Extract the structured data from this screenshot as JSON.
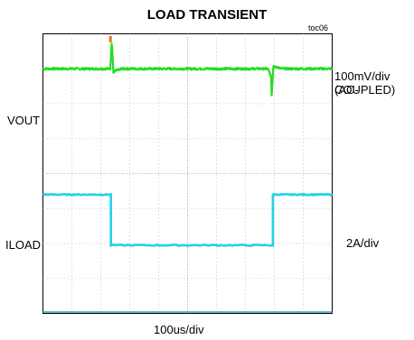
{
  "chart_data": {
    "type": "line",
    "title": "LOAD TRANSIENT",
    "figure_tag": "toc06",
    "x_scale": "100us/div",
    "x_divisions": 10,
    "y_divisions": 8,
    "grid": true,
    "trigger_marker_color": "#e07a10",
    "series": [
      {
        "name": "VOUT",
        "scale": "100mV/div (AC-COUPLED)",
        "color": "#22dd22",
        "events": [
          {
            "t_div": 2.35,
            "type": "overshoot",
            "peak_div": 0.8
          },
          {
            "t_div": 7.9,
            "type": "undershoot",
            "peak_div": -0.85
          }
        ],
        "baseline_div": 3.0
      },
      {
        "name": "ILOAD",
        "scale": "2A/div",
        "color": "#22d3e6",
        "segments": [
          {
            "t_div_start": 0,
            "t_div_end": 2.35,
            "level_div": -0.6
          },
          {
            "t_div_start": 2.35,
            "t_div_end": 7.95,
            "level_div": -2.05
          },
          {
            "t_div_start": 7.95,
            "t_div_end": 10,
            "level_div": -0.6
          }
        ]
      }
    ]
  },
  "labels": {
    "title": "LOAD TRANSIENT",
    "tag": "toc06",
    "vout": "VOUT",
    "iload": "ILOAD",
    "vscale_line1": "100mV/div (AC-",
    "vscale_line2": "COUPLED)",
    "iscale": "2A/div",
    "xscale": "100us/div"
  }
}
